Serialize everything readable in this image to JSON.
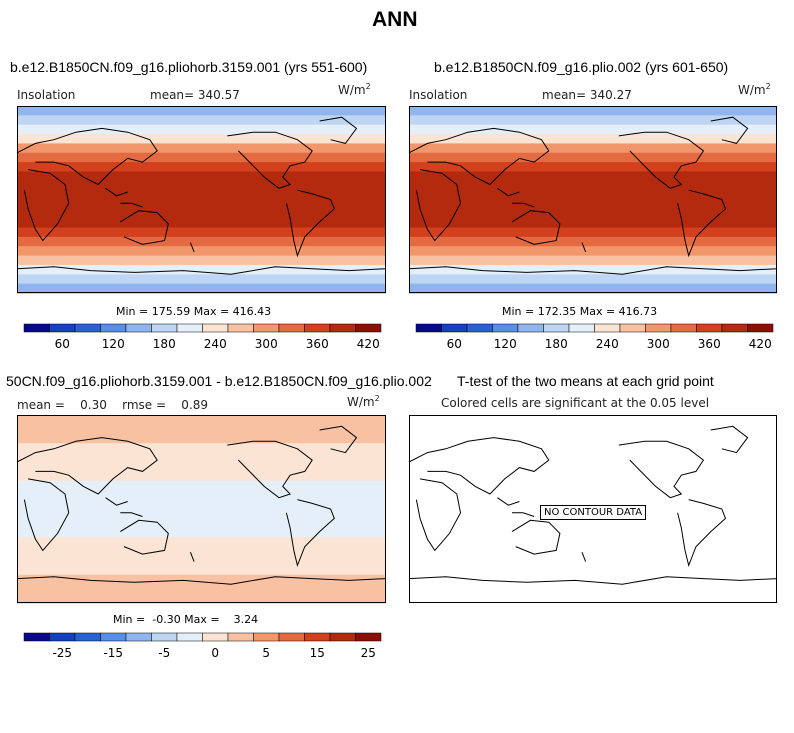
{
  "title": "ANN",
  "palette": [
    "#08088c",
    "#1540c0",
    "#2a60d2",
    "#5a8ee6",
    "#8fb4ee",
    "#bed6f4",
    "#e4effa",
    "#fbe4d4",
    "#f8c2a2",
    "#f2966c",
    "#e46a42",
    "#d3401e",
    "#b32a0e",
    "#8a1004"
  ],
  "panels": [
    {
      "title": "b.e12.B1850CN.f09_g16.pliohorb.3159.001 (yrs 551-600)",
      "left_label": "Insolation",
      "center_label": "mean= 340.57",
      "units": "W/m",
      "units_sup": "2",
      "minmax": "Min = 175.59 Max = 416.43",
      "colorbar_ticks": [
        "60",
        "120",
        "180",
        "240",
        "300",
        "360",
        "420"
      ],
      "chart_data": {
        "type": "heatmap",
        "variable": "Insolation",
        "latitude_bands_color_index": [
          4,
          5,
          6,
          7,
          9,
          10,
          11,
          12,
          12,
          12,
          12,
          12,
          12,
          11,
          10,
          9,
          8,
          6,
          5,
          4
        ],
        "mean": 340.57,
        "min": 175.59,
        "max": 416.43
      }
    },
    {
      "title": "b.e12.B1850CN.f09_g16.plio.002 (yrs 601-650)",
      "left_label": "Insolation",
      "center_label": "mean= 340.27",
      "units": "W/m",
      "units_sup": "2",
      "minmax": "Min = 172.35 Max = 416.73",
      "colorbar_ticks": [
        "60",
        "120",
        "180",
        "240",
        "300",
        "360",
        "420"
      ],
      "chart_data": {
        "type": "heatmap",
        "variable": "Insolation",
        "latitude_bands_color_index": [
          4,
          5,
          6,
          7,
          9,
          10,
          11,
          12,
          12,
          12,
          12,
          12,
          12,
          11,
          10,
          9,
          8,
          6,
          5,
          4
        ],
        "mean": 340.27,
        "min": 172.35,
        "max": 416.73
      }
    },
    {
      "title": "50CN.f09_g16.pliohorb.3159.001 - b.e12.B1850CN.f09_g16.plio.002",
      "left_label": "mean =    0.30    rmse =    0.89",
      "units": "W/m",
      "units_sup": "2",
      "minmax": "Min =  -0.30 Max =    3.24",
      "colorbar_ticks": [
        "-25",
        "-15",
        "-5",
        "0",
        "5",
        "15",
        "25"
      ],
      "chart_data": {
        "type": "heatmap",
        "variable": "difference",
        "latitude_bands_color_index": [
          8,
          8,
          8,
          7,
          7,
          7,
          7,
          6,
          6,
          6,
          6,
          6,
          6,
          7,
          7,
          7,
          7,
          8,
          8,
          8
        ],
        "mean": 0.3,
        "rmse": 0.89,
        "min": -0.3,
        "max": 3.24
      }
    },
    {
      "title": "T-test of the two means at each grid point",
      "subtitle": "Colored cells are significant at the 0.05 level",
      "no_data": "NO CONTOUR DATA"
    }
  ]
}
